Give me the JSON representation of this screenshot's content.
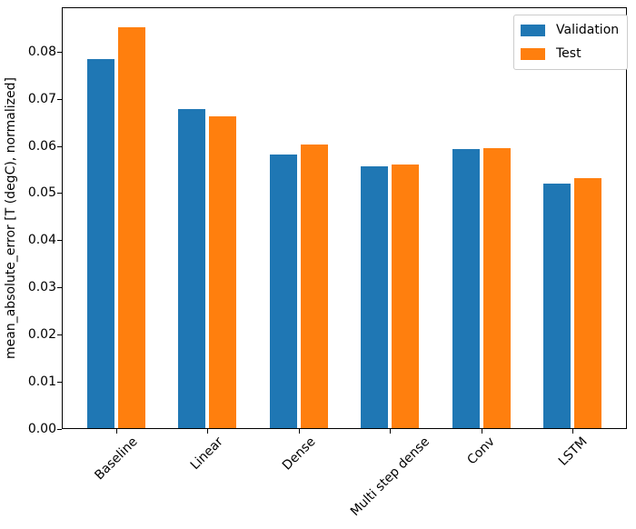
{
  "chart_data": {
    "type": "bar",
    "title": "",
    "xlabel": "",
    "ylabel": "mean_absolute_error [T (degC), normalized]",
    "categories": [
      "Baseline",
      "Linear",
      "Dense",
      "Multi step dense",
      "Conv",
      "LSTM"
    ],
    "series": [
      {
        "name": "Validation",
        "color": "#1f77b4",
        "values": [
          0.0785,
          0.0678,
          0.0581,
          0.0556,
          0.0593,
          0.0521
        ]
      },
      {
        "name": "Test",
        "color": "#ff7f0e",
        "values": [
          0.0852,
          0.0663,
          0.0603,
          0.0561,
          0.0595,
          0.0532
        ]
      }
    ],
    "ylim": [
      0,
      0.0894
    ],
    "yticks": [
      0.0,
      0.01,
      0.02,
      0.03,
      0.04,
      0.05,
      0.06,
      0.07,
      0.08
    ],
    "ytick_labels": [
      "0.00",
      "0.01",
      "0.02",
      "0.03",
      "0.04",
      "0.05",
      "0.06",
      "0.07",
      "0.08"
    ],
    "xtick_rotation": 45,
    "grid": false,
    "legend": {
      "position": "upper right",
      "entries": [
        "Validation",
        "Test"
      ]
    },
    "axis_color": "#000000",
    "background_color": "#ffffff"
  }
}
